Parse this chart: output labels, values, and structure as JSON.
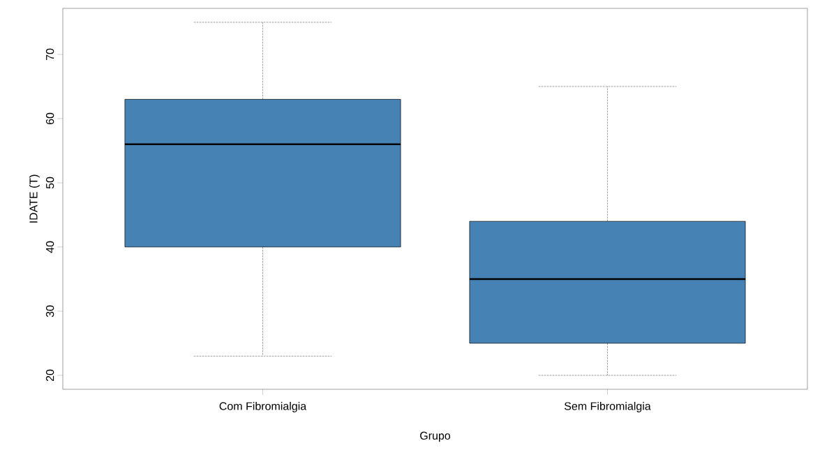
{
  "chart_data": {
    "type": "box",
    "xlabel": "Grupo",
    "ylabel": "IDATE (T)",
    "categories": [
      "Com Fibromialgia",
      "Sem Fibromialgia"
    ],
    "series": [
      {
        "color": "#4682b4",
        "boxes": [
          {
            "low": 23,
            "q1": 40,
            "median": 56,
            "q3": 63,
            "high": 75
          },
          {
            "low": 20,
            "q1": 25,
            "median": 35,
            "q3": 44,
            "high": 65
          }
        ]
      }
    ],
    "ylim": [
      17.83,
      77.17
    ],
    "yticks": [
      20,
      30,
      40,
      50,
      60,
      70
    ]
  }
}
